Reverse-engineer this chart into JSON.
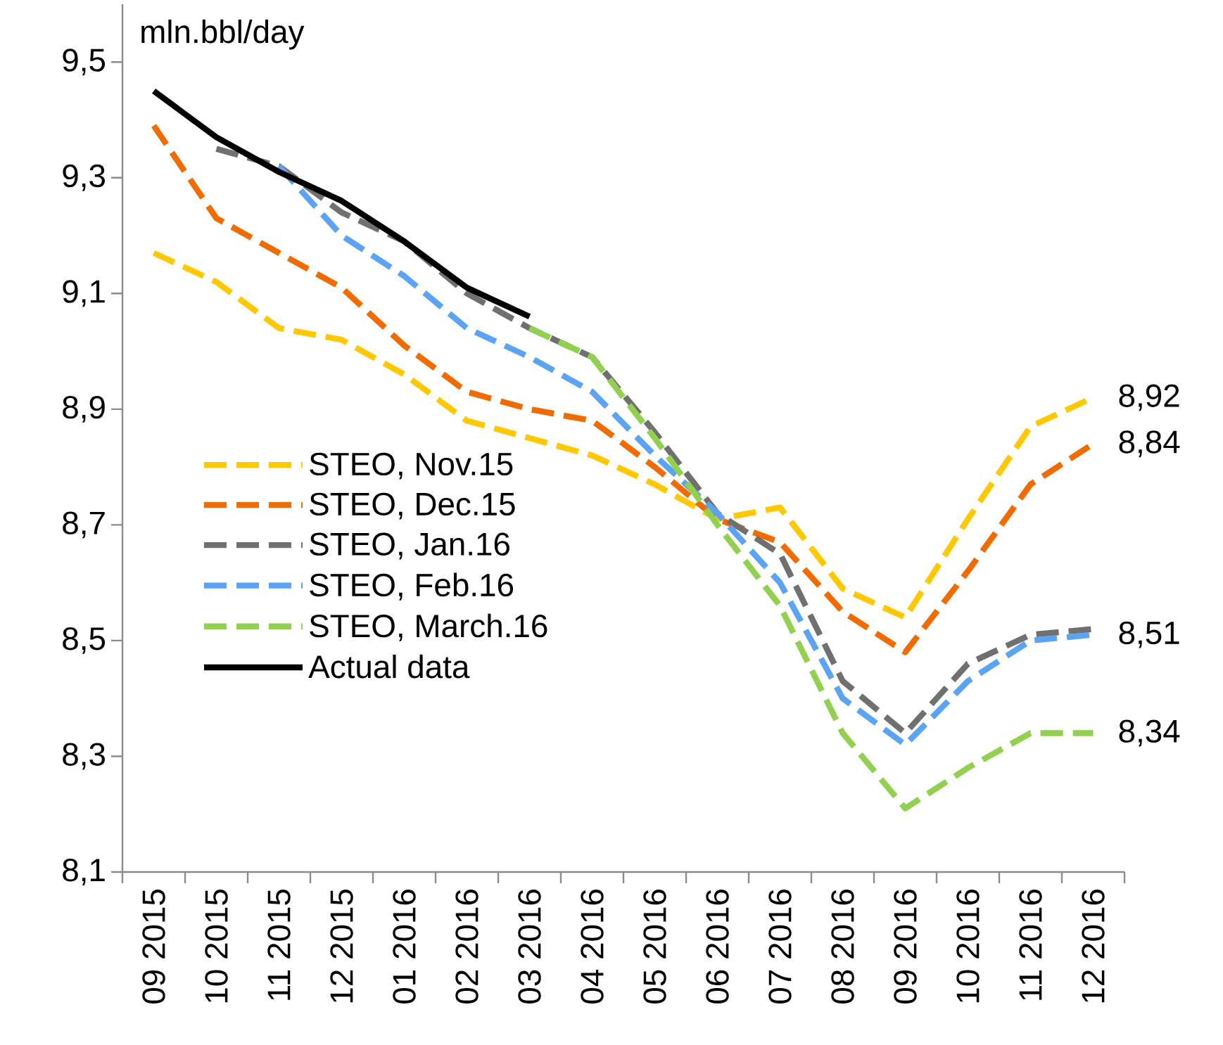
{
  "chart_data": {
    "type": "line",
    "ylabel": "mln.bbl/day",
    "categories": [
      "09 2015",
      "10 2015",
      "11 2015",
      "12 2015",
      "01 2016",
      "02 2016",
      "03 2016",
      "04 2016",
      "05 2016",
      "06 2016",
      "07 2016",
      "08 2016",
      "09 2016",
      "10 2016",
      "11 2016",
      "12 2016"
    ],
    "series": [
      {
        "name": "STEO, Nov.15",
        "color": "#ffc800",
        "line_style": "dashed",
        "values": [
          9.17,
          9.12,
          9.04,
          9.02,
          8.96,
          8.88,
          8.85,
          8.82,
          8.77,
          8.71,
          8.73,
          8.59,
          8.54,
          8.71,
          8.87,
          8.92
        ]
      },
      {
        "name": "STEO, Dec.15",
        "color": "#f26b00",
        "line_style": "dashed",
        "values": [
          9.39,
          9.23,
          9.17,
          9.11,
          9.01,
          8.93,
          8.9,
          8.88,
          8.8,
          8.71,
          8.67,
          8.55,
          8.48,
          8.62,
          8.77,
          8.84
        ]
      },
      {
        "name": "STEO, Jan.16",
        "color": "#707070",
        "line_style": "dashed",
        "values": [
          null,
          9.35,
          9.32,
          9.24,
          9.19,
          9.1,
          9.04,
          8.99,
          8.86,
          8.72,
          8.65,
          8.43,
          8.34,
          8.46,
          8.51,
          8.52
        ]
      },
      {
        "name": "STEO, Feb.16",
        "color": "#5ba3f5",
        "line_style": "dashed",
        "values": [
          null,
          null,
          9.32,
          9.2,
          9.13,
          9.04,
          8.99,
          8.93,
          8.82,
          8.72,
          8.6,
          8.4,
          8.32,
          8.43,
          8.5,
          8.51
        ]
      },
      {
        "name": "STEO, March.16",
        "color": "#92d050",
        "line_style": "dashed",
        "values": [
          null,
          null,
          null,
          null,
          null,
          null,
          9.04,
          8.99,
          8.85,
          8.7,
          8.56,
          8.34,
          8.21,
          8.28,
          8.34,
          8.34
        ]
      },
      {
        "name": "Actual data",
        "color": "#000000",
        "line_style": "solid",
        "values": [
          9.45,
          9.37,
          9.31,
          9.26,
          9.19,
          9.11,
          9.06,
          null,
          null,
          null,
          null,
          null,
          null,
          null,
          null,
          null
        ]
      }
    ],
    "ylim": [
      8.1,
      9.6
    ],
    "yticks": [
      {
        "value": 8.1,
        "label": "8,1"
      },
      {
        "value": 8.3,
        "label": "8,3"
      },
      {
        "value": 8.5,
        "label": "8,5"
      },
      {
        "value": 8.7,
        "label": "8,7"
      },
      {
        "value": 8.9,
        "label": "8,9"
      },
      {
        "value": 9.1,
        "label": "9,1"
      },
      {
        "value": 9.3,
        "label": "9,3"
      },
      {
        "value": 9.5,
        "label": "9,5"
      }
    ],
    "annotations": [
      {
        "text": "8,92",
        "x": "12 2016",
        "y": 8.92
      },
      {
        "text": "8,84",
        "x": "12 2016",
        "y": 8.84
      },
      {
        "text": "8,51",
        "x": "12 2016",
        "y": 8.51
      },
      {
        "text": "8,34",
        "x": "12 2016",
        "y": 8.34
      }
    ],
    "legend": "left"
  }
}
